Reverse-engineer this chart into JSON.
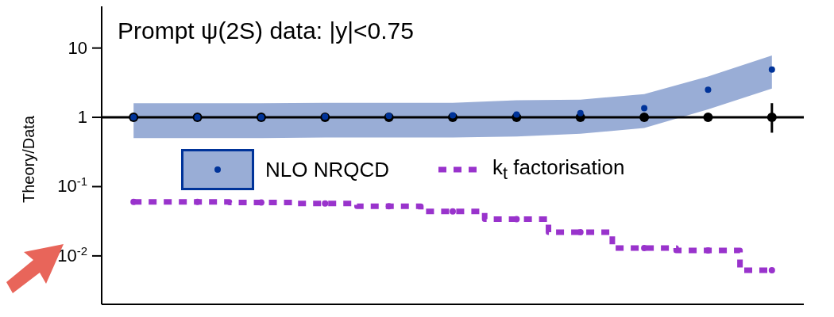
{
  "chart_data": {
    "type": "scatter",
    "title": "Prompt ψ(2S) data: |y|<0.75",
    "ylabel": "Theory/Data",
    "categories": [
      null,
      null,
      null,
      null,
      null,
      null,
      null,
      null,
      null,
      null,
      null
    ],
    "log": "y",
    "ylim": [
      0.002,
      40
    ],
    "yticks": [
      {
        "value": 0.01,
        "label": "10$^{-2}$"
      },
      {
        "value": 0.1,
        "label": "10$^{-1}$"
      },
      1,
      10
    ],
    "marker": "circle",
    "legend": "left",
    "ref_lines": [
      {
        "axis": "y",
        "value": 1,
        "color": "#000000"
      }
    ],
    "series": [
      {
        "name": "NLO NRQCD",
        "color": "#003399",
        "values": [
          1.0,
          1.0,
          1.0,
          1.02,
          1.05,
          1.07,
          1.1,
          1.15,
          1.36,
          2.5,
          4.9
        ],
        "lower": [
          0.5,
          0.5,
          0.5,
          0.51,
          0.51,
          0.51,
          0.53,
          0.58,
          0.7,
          1.3,
          2.6
        ],
        "upper": [
          1.6,
          1.6,
          1.6,
          1.62,
          1.62,
          1.62,
          1.76,
          1.8,
          2.16,
          3.9,
          7.8
        ]
      },
      {
        "name": "k$_{t}$ factorisation",
        "type": "step",
        "color": "#9933cc",
        "line_style": "dashed",
        "values": [
          0.06,
          0.06,
          0.059,
          0.057,
          0.052,
          0.044,
          0.034,
          0.022,
          0.013,
          0.012,
          0.0062
        ]
      },
      {
        "color": "#000000",
        "values": [
          1,
          1,
          1,
          1,
          1,
          1,
          1,
          1,
          1,
          1,
          1
        ],
        "errors": [
          null,
          null,
          null,
          null,
          null,
          null,
          null,
          null,
          null,
          null,
          [
            0.6,
            1.6
          ]
        ]
      }
    ]
  }
}
